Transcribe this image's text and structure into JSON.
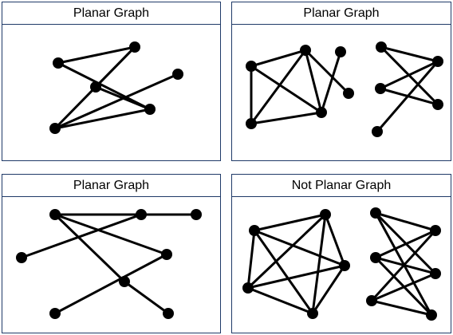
{
  "panels": [
    {
      "id": "top-left",
      "title": "Planar Graph",
      "graphs": [
        {
          "nodes": [
            {
              "id": "a",
              "label": ""
            },
            {
              "id": "b",
              "label": ""
            },
            {
              "id": "c",
              "label": ""
            },
            {
              "id": "d",
              "label": ""
            },
            {
              "id": "e",
              "label": ""
            },
            {
              "id": "f",
              "label": ""
            }
          ],
          "edges": [
            [
              "a",
              "b"
            ],
            [
              "a",
              "e"
            ],
            [
              "b",
              "c"
            ],
            [
              "b",
              "d"
            ],
            [
              "c",
              "e"
            ],
            [
              "e",
              "d"
            ],
            [
              "d",
              "f"
            ]
          ]
        }
      ]
    },
    {
      "id": "top-right",
      "title": "Planar Graph",
      "graphs": [
        {
          "nodes": [
            {
              "id": "a"
            },
            {
              "id": "b"
            },
            {
              "id": "c"
            },
            {
              "id": "d"
            },
            {
              "id": "e"
            },
            {
              "id": "f"
            }
          ],
          "edges": [
            [
              "a",
              "b"
            ],
            [
              "a",
              "c"
            ],
            [
              "a",
              "d"
            ],
            [
              "b",
              "c"
            ],
            [
              "b",
              "d"
            ],
            [
              "c",
              "d"
            ],
            [
              "b",
              "f"
            ],
            [
              "e",
              "d"
            ]
          ]
        },
        {
          "nodes": [
            {
              "id": "p"
            },
            {
              "id": "q"
            },
            {
              "id": "r"
            },
            {
              "id": "s"
            },
            {
              "id": "t"
            }
          ],
          "edges": [
            [
              "p",
              "q"
            ],
            [
              "p",
              "s"
            ],
            [
              "r",
              "q"
            ],
            [
              "r",
              "s"
            ],
            [
              "q",
              "t"
            ]
          ]
        }
      ]
    },
    {
      "id": "bottom-left",
      "title": "Planar Graph",
      "graphs": [
        {
          "nodes": [
            {
              "id": "a"
            },
            {
              "id": "b"
            },
            {
              "id": "c"
            },
            {
              "id": "d"
            },
            {
              "id": "e"
            },
            {
              "id": "f"
            },
            {
              "id": "g"
            },
            {
              "id": "h"
            }
          ],
          "edges": [
            [
              "a",
              "b"
            ],
            [
              "b",
              "c"
            ],
            [
              "b",
              "f"
            ],
            [
              "a",
              "d"
            ],
            [
              "d",
              "g"
            ],
            [
              "a",
              "e"
            ],
            [
              "e",
              "h"
            ]
          ]
        }
      ]
    },
    {
      "id": "bottom-right",
      "title": "Not Planar Graph",
      "graphs": [
        {
          "nodes": [
            {
              "id": "a"
            },
            {
              "id": "b"
            },
            {
              "id": "c"
            },
            {
              "id": "d"
            },
            {
              "id": "e"
            }
          ],
          "edges": [
            [
              "a",
              "b"
            ],
            [
              "a",
              "c"
            ],
            [
              "a",
              "d"
            ],
            [
              "a",
              "e"
            ],
            [
              "b",
              "c"
            ],
            [
              "b",
              "d"
            ],
            [
              "b",
              "e"
            ],
            [
              "c",
              "d"
            ],
            [
              "c",
              "e"
            ],
            [
              "d",
              "e"
            ]
          ]
        },
        {
          "nodes": [
            {
              "id": "u1"
            },
            {
              "id": "u2"
            },
            {
              "id": "u3"
            },
            {
              "id": "v1"
            },
            {
              "id": "v2"
            },
            {
              "id": "v3"
            }
          ],
          "edges": [
            [
              "u1",
              "v1"
            ],
            [
              "u1",
              "v2"
            ],
            [
              "u1",
              "v3"
            ],
            [
              "u2",
              "v1"
            ],
            [
              "u2",
              "v2"
            ],
            [
              "u2",
              "v3"
            ],
            [
              "u3",
              "v1"
            ],
            [
              "u3",
              "v2"
            ],
            [
              "u3",
              "v3"
            ]
          ]
        }
      ]
    }
  ],
  "colors": {
    "border": "#1f3a68",
    "ink": "#000000",
    "background": "#ffffff"
  }
}
